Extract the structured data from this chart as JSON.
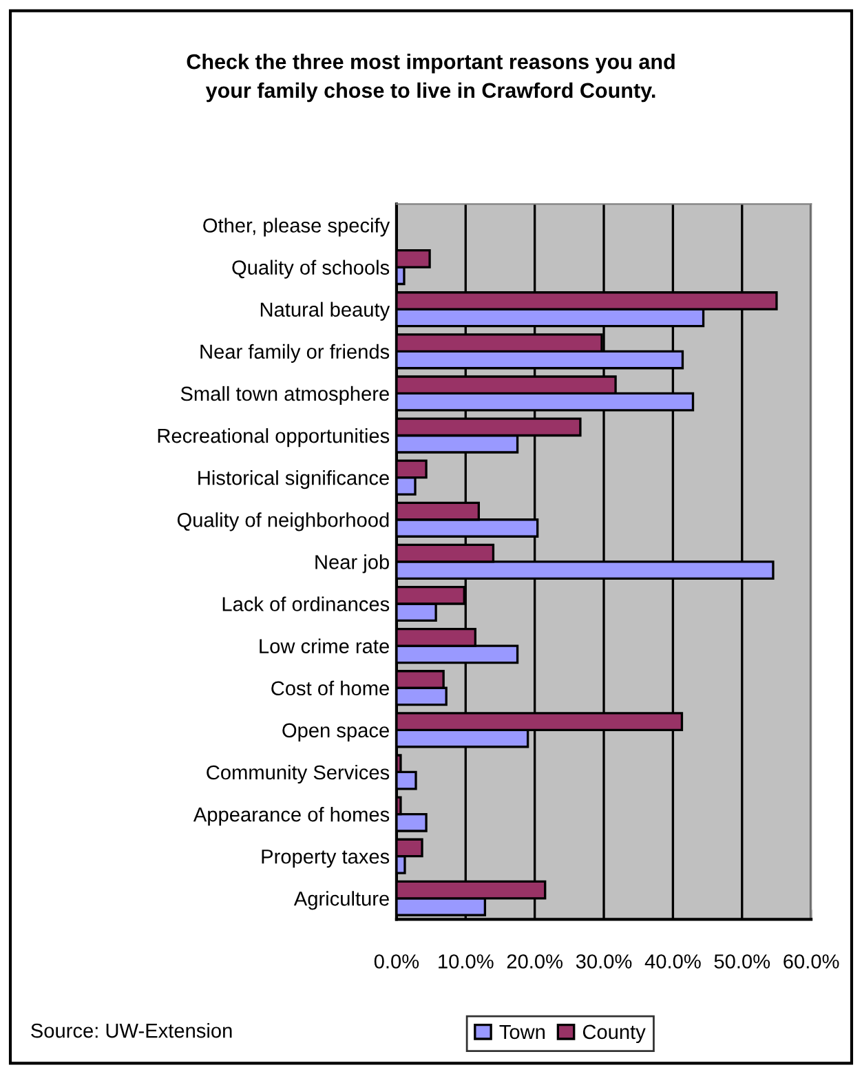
{
  "chart_data": {
    "type": "bar",
    "orientation": "horizontal",
    "title": "Check the three most important reasons you and\nyour family chose to live in Crawford County.",
    "categories": [
      "Other, please specify",
      "Quality of schools",
      "Natural beauty",
      "Near family or friends",
      "Small town atmosphere",
      "Recreational opportunities",
      "Historical significance",
      "Quality of neighborhood",
      "Near job",
      "Lack of ordinances",
      "Low crime rate",
      "Cost of home",
      "Open space",
      "Community Services",
      "Appearance of homes",
      "Property taxes",
      "Agriculture"
    ],
    "series": [
      {
        "name": "Town",
        "color": "#9999ff",
        "values": [
          null,
          1.1,
          44.4,
          41.4,
          42.9,
          17.5,
          2.7,
          20.4,
          54.5,
          5.7,
          17.5,
          7.2,
          19.0,
          2.8,
          4.3,
          1.2,
          12.8
        ]
      },
      {
        "name": "County",
        "color": "#993366",
        "values": [
          null,
          4.8,
          55.0,
          29.7,
          31.7,
          26.6,
          4.3,
          11.9,
          14.0,
          9.8,
          11.4,
          6.8,
          41.3,
          0.6,
          0.6,
          3.7,
          21.5
        ]
      }
    ],
    "xlim": [
      0,
      60
    ],
    "xticks": [
      {
        "value": 0,
        "label": "0.0%"
      },
      {
        "value": 10,
        "label": "10.0%"
      },
      {
        "value": 20,
        "label": "20.0%"
      },
      {
        "value": 30,
        "label": "30.0%"
      },
      {
        "value": 40,
        "label": "40.0%"
      },
      {
        "value": 50,
        "label": "50.0%"
      },
      {
        "value": 60,
        "label": "60.0%"
      }
    ],
    "grid": "x",
    "legend": "bottom",
    "annotations": [
      "Source: UW-Extension"
    ]
  }
}
